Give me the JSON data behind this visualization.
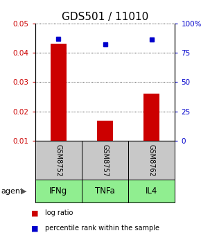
{
  "title": "GDS501 / 11010",
  "samples": [
    "GSM8752",
    "GSM8757",
    "GSM8762"
  ],
  "agents": [
    "IFNg",
    "TNFa",
    "IL4"
  ],
  "log_ratio": [
    0.043,
    0.017,
    0.026
  ],
  "percentile_rank": [
    87,
    82,
    86
  ],
  "ylim_left": [
    0.01,
    0.05
  ],
  "ylim_right": [
    0,
    100
  ],
  "yticks_left": [
    0.01,
    0.02,
    0.03,
    0.04,
    0.05
  ],
  "yticks_right": [
    0,
    25,
    50,
    75,
    100
  ],
  "ytick_labels_right": [
    "0",
    "25",
    "50",
    "75",
    "100%"
  ],
  "bar_color": "#cc0000",
  "dot_color": "#0000cc",
  "bar_width": 0.35,
  "gray_bg": "#c8c8c8",
  "green_bg": "#90ee90",
  "title_fontsize": 11,
  "tick_fontsize": 7.5,
  "table_fontsize": 7,
  "agent_fontsize": 8.5,
  "legend_fontsize": 7
}
